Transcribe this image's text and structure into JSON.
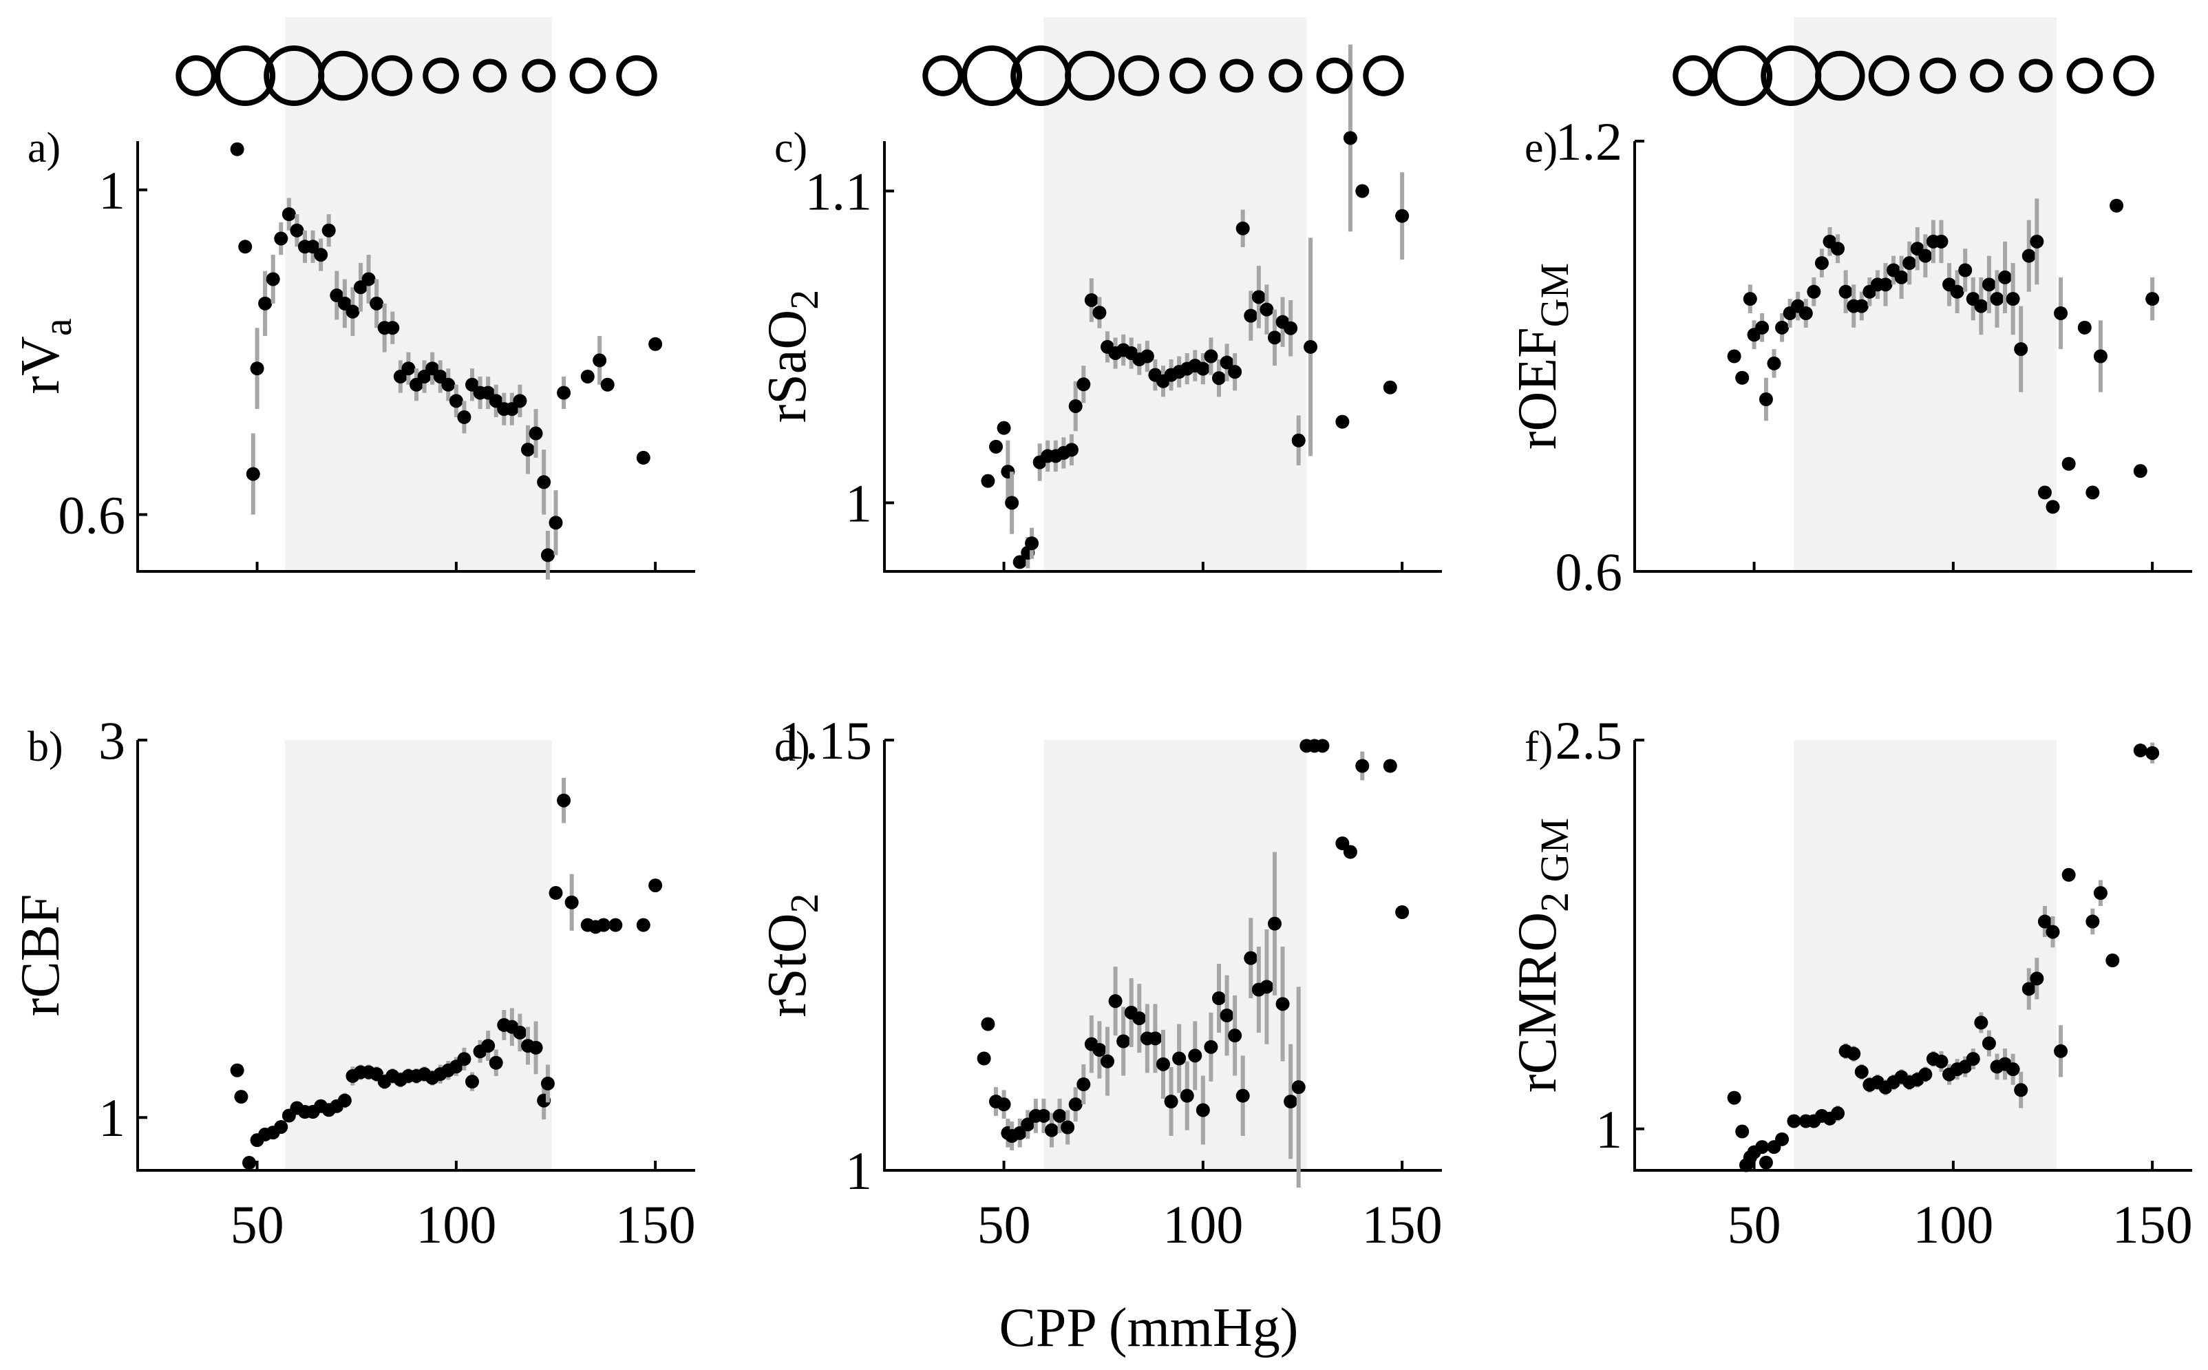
{
  "figure": {
    "xlabel": "CPP (mmHg)"
  },
  "chart_data": [
    {
      "type": "scatter",
      "panel": "a)",
      "ylabel": "rV",
      "ylabel_sub": "a",
      "xlim": [
        20,
        160
      ],
      "ylim": [
        0.53,
        1.06
      ],
      "xticks": [
        50,
        100,
        150
      ],
      "xtick_labels": [
        "50",
        "100",
        "150"
      ],
      "show_xtick_labels": false,
      "yticks": [
        0.6,
        1
      ],
      "ytick_labels": [
        "0.6",
        "1"
      ],
      "shaded_range": [
        57,
        124
      ],
      "x": [
        45,
        47,
        49,
        50,
        52,
        54,
        56,
        58,
        60,
        62,
        64,
        66,
        68,
        70,
        72,
        74,
        76,
        78,
        80,
        82,
        84,
        86,
        88,
        90,
        92,
        94,
        96,
        98,
        100,
        102,
        104,
        106,
        108,
        110,
        112,
        114,
        116,
        118,
        120,
        122,
        123,
        125,
        127,
        133,
        136,
        138,
        147,
        150
      ],
      "y": [
        1.05,
        0.93,
        0.65,
        0.78,
        0.86,
        0.89,
        0.94,
        0.97,
        0.95,
        0.93,
        0.93,
        0.92,
        0.95,
        0.87,
        0.86,
        0.85,
        0.88,
        0.89,
        0.86,
        0.83,
        0.83,
        0.77,
        0.78,
        0.76,
        0.77,
        0.78,
        0.77,
        0.76,
        0.74,
        0.72,
        0.76,
        0.75,
        0.75,
        0.74,
        0.73,
        0.73,
        0.74,
        0.68,
        0.7,
        0.64,
        0.55,
        0.59,
        0.75,
        0.77,
        0.79,
        0.76,
        0.67,
        0.81
      ],
      "err": [
        0,
        0,
        0.05,
        0.05,
        0.04,
        0.03,
        0.02,
        0.02,
        0.02,
        0.02,
        0.02,
        0.02,
        0.02,
        0.03,
        0.03,
        0.03,
        0.03,
        0.03,
        0.03,
        0.03,
        0.02,
        0.02,
        0.02,
        0.02,
        0.02,
        0.02,
        0.02,
        0.02,
        0.02,
        0.02,
        0.02,
        0.02,
        0.02,
        0.02,
        0.02,
        0.02,
        0.02,
        0.03,
        0.03,
        0.04,
        0.03,
        0.04,
        0.02,
        0,
        0.03,
        0,
        0,
        0
      ]
    },
    {
      "type": "scatter",
      "panel": "b)",
      "ylabel": "rCBF",
      "ylabel_sub": "",
      "xlim": [
        20,
        160
      ],
      "ylim": [
        0.72,
        3.0
      ],
      "xticks": [
        50,
        100,
        150
      ],
      "xtick_labels": [
        "50",
        "100",
        "150"
      ],
      "show_xtick_labels": true,
      "yticks": [
        1,
        3
      ],
      "ytick_labels": [
        "1",
        "3"
      ],
      "shaded_range": [
        57,
        124
      ],
      "x": [
        45,
        46,
        48,
        50,
        52,
        54,
        56,
        58,
        60,
        62,
        64,
        66,
        68,
        70,
        72,
        74,
        76,
        78,
        80,
        82,
        84,
        86,
        88,
        90,
        92,
        94,
        96,
        98,
        100,
        102,
        104,
        106,
        108,
        110,
        112,
        114,
        116,
        118,
        120,
        122,
        123,
        125,
        127,
        129,
        133,
        135,
        137,
        140,
        147,
        150
      ],
      "y": [
        1.25,
        1.11,
        0.76,
        0.88,
        0.91,
        0.92,
        0.95,
        1.01,
        1.05,
        1.03,
        1.03,
        1.06,
        1.04,
        1.06,
        1.09,
        1.22,
        1.24,
        1.24,
        1.23,
        1.19,
        1.22,
        1.2,
        1.22,
        1.22,
        1.23,
        1.21,
        1.23,
        1.25,
        1.27,
        1.31,
        1.19,
        1.35,
        1.38,
        1.29,
        1.49,
        1.48,
        1.45,
        1.38,
        1.37,
        1.09,
        1.18,
        2.19,
        2.68,
        2.14,
        2.02,
        2.01,
        2.02,
        2.02,
        2.02,
        2.23
      ],
      "err": [
        0,
        0,
        0,
        0,
        0.03,
        0.03,
        0.03,
        0.03,
        0.03,
        0.03,
        0.03,
        0.03,
        0.03,
        0.03,
        0.04,
        0.05,
        0.04,
        0.04,
        0.04,
        0.04,
        0.04,
        0.04,
        0.04,
        0.04,
        0.04,
        0.04,
        0.05,
        0.05,
        0.05,
        0.06,
        0.05,
        0.06,
        0.08,
        0.07,
        0.08,
        0.1,
        0.1,
        0.1,
        0.14,
        0.1,
        0.1,
        0,
        0.12,
        0.15,
        0,
        0,
        0,
        0,
        0,
        0
      ]
    },
    {
      "type": "scatter",
      "panel": "c)",
      "ylabel": "rSaO",
      "ylabel_sub": "2",
      "xlim": [
        20,
        160
      ],
      "ylim": [
        0.978,
        1.116
      ],
      "xticks": [
        50,
        100,
        150
      ],
      "xtick_labels": [
        "50",
        "100",
        "150"
      ],
      "show_xtick_labels": false,
      "yticks": [
        1,
        1.1
      ],
      "ytick_labels": [
        "1",
        "1.1"
      ],
      "shaded_range": [
        60,
        126
      ],
      "x": [
        46,
        48,
        50,
        51,
        52,
        54,
        56,
        57,
        59,
        61,
        63,
        65,
        67,
        68,
        70,
        72,
        74,
        76,
        78,
        80,
        82,
        84,
        86,
        88,
        90,
        92,
        94,
        96,
        98,
        100,
        102,
        104,
        106,
        108,
        110,
        112,
        114,
        116,
        118,
        120,
        122,
        124,
        127,
        135,
        137,
        140,
        147,
        150
      ],
      "y": [
        1.007,
        1.018,
        1.024,
        1.01,
        1.0,
        0.981,
        0.984,
        0.987,
        1.013,
        1.015,
        1.015,
        1.016,
        1.017,
        1.031,
        1.038,
        1.065,
        1.061,
        1.05,
        1.048,
        1.049,
        1.048,
        1.046,
        1.047,
        1.041,
        1.039,
        1.041,
        1.042,
        1.043,
        1.044,
        1.043,
        1.047,
        1.04,
        1.045,
        1.042,
        1.088,
        1.06,
        1.066,
        1.062,
        1.053,
        1.058,
        1.056,
        1.02,
        1.05,
        1.026,
        1.117,
        1.1,
        1.037,
        1.092
      ],
      "err": [
        0,
        0,
        0,
        0.01,
        0.01,
        0,
        0.005,
        0.005,
        0.006,
        0.005,
        0.005,
        0.005,
        0.005,
        0.008,
        0.006,
        0.007,
        0.005,
        0.005,
        0.005,
        0.005,
        0.005,
        0.005,
        0.005,
        0.005,
        0.005,
        0.005,
        0.005,
        0.005,
        0.005,
        0.005,
        0.006,
        0.006,
        0.006,
        0.006,
        0.006,
        0.008,
        0.01,
        0.008,
        0.009,
        0.008,
        0.009,
        0.008,
        0.035,
        0,
        0.03,
        0,
        0,
        0.014
      ]
    },
    {
      "type": "scatter",
      "panel": "d)",
      "ylabel": "rStO",
      "ylabel_sub": "2",
      "xlim": [
        20,
        160
      ],
      "ylim": [
        1.0,
        1.15
      ],
      "xticks": [
        50,
        100,
        150
      ],
      "xtick_labels": [
        "50",
        "100",
        "150"
      ],
      "show_xtick_labels": true,
      "yticks": [
        1,
        1.15
      ],
      "ytick_labels": [
        "1",
        "1.15"
      ],
      "shaded_range": [
        60,
        126
      ],
      "x": [
        45,
        46,
        48,
        50,
        51,
        52,
        54,
        56,
        58,
        60,
        62,
        64,
        66,
        68,
        70,
        72,
        74,
        76,
        78,
        80,
        82,
        84,
        86,
        88,
        90,
        92,
        94,
        96,
        98,
        100,
        102,
        104,
        106,
        108,
        110,
        112,
        114,
        116,
        118,
        120,
        122,
        124,
        126,
        128,
        130,
        135,
        137,
        140,
        147,
        150
      ],
      "y": [
        1.039,
        1.051,
        1.024,
        1.023,
        1.013,
        1.012,
        1.013,
        1.016,
        1.019,
        1.019,
        1.014,
        1.019,
        1.015,
        1.023,
        1.03,
        1.044,
        1.042,
        1.038,
        1.059,
        1.045,
        1.055,
        1.053,
        1.046,
        1.046,
        1.037,
        1.024,
        1.039,
        1.026,
        1.04,
        1.021,
        1.043,
        1.06,
        1.054,
        1.047,
        1.026,
        1.074,
        1.063,
        1.064,
        1.086,
        1.058,
        1.024,
        1.029,
        1.148,
        1.148,
        1.148,
        1.114,
        1.111,
        1.141,
        1.141,
        1.09
      ],
      "err": [
        0,
        0,
        0.005,
        0.005,
        0.005,
        0.005,
        0.005,
        0.005,
        0.006,
        0.006,
        0.006,
        0.006,
        0.006,
        0.006,
        0.007,
        0.01,
        0.01,
        0.012,
        0.012,
        0.012,
        0.012,
        0.012,
        0.012,
        0.012,
        0.012,
        0.012,
        0.012,
        0.012,
        0.012,
        0.012,
        0.012,
        0.012,
        0.014,
        0.014,
        0.014,
        0.014,
        0.015,
        0.02,
        0.025,
        0.02,
        0.02,
        0.035,
        0,
        0,
        0,
        0,
        0,
        0.005,
        0,
        0
      ]
    },
    {
      "type": "scatter",
      "panel": "e)",
      "ylabel": "rOEF",
      "ylabel_sub": "GM",
      "xlim": [
        20,
        160
      ],
      "ylim": [
        0.6,
        1.2
      ],
      "xticks": [
        50,
        100,
        150
      ],
      "xtick_labels": [
        "50",
        "100",
        "150"
      ],
      "show_xtick_labels": false,
      "yticks": [
        0.6,
        1.2
      ],
      "ytick_labels": [
        "0.6",
        "1.2"
      ],
      "shaded_range": [
        60,
        126
      ],
      "x": [
        45,
        47,
        49,
        50,
        52,
        53,
        55,
        57,
        59,
        61,
        63,
        65,
        67,
        69,
        71,
        73,
        75,
        77,
        79,
        81,
        83,
        85,
        87,
        89,
        91,
        93,
        95,
        97,
        99,
        101,
        103,
        105,
        107,
        109,
        111,
        113,
        115,
        117,
        119,
        121,
        123,
        125,
        127,
        129,
        133,
        135,
        137,
        141,
        147,
        150
      ],
      "y": [
        0.9,
        0.87,
        0.98,
        0.93,
        0.94,
        0.84,
        0.89,
        0.94,
        0.96,
        0.97,
        0.96,
        0.99,
        1.03,
        1.06,
        1.05,
        0.99,
        0.97,
        0.97,
        0.99,
        1.0,
        1.0,
        1.02,
        1.01,
        1.03,
        1.05,
        1.04,
        1.06,
        1.06,
        1.0,
        0.99,
        1.02,
        0.98,
        0.97,
        1.0,
        0.98,
        1.01,
        0.98,
        0.91,
        1.04,
        1.06,
        0.71,
        0.69,
        0.96,
        0.75,
        0.94,
        0.71,
        0.9,
        1.11,
        0.74,
        0.98
      ],
      "err": [
        0,
        0,
        0.02,
        0.02,
        0.02,
        0.03,
        0.02,
        0.02,
        0.02,
        0.02,
        0.02,
        0.02,
        0.02,
        0.02,
        0.02,
        0.03,
        0.03,
        0.02,
        0.02,
        0.02,
        0.03,
        0.02,
        0.03,
        0.03,
        0.03,
        0.03,
        0.03,
        0.03,
        0.03,
        0.03,
        0.03,
        0.03,
        0.04,
        0.04,
        0.04,
        0.05,
        0.05,
        0.06,
        0.05,
        0.06,
        0,
        0,
        0.05,
        0,
        0,
        0,
        0.05,
        0,
        0,
        0.03
      ]
    },
    {
      "type": "scatter",
      "panel": "f)",
      "ylabel": "rCMRO",
      "ylabel_sub": "2 GM",
      "xlim": [
        20,
        160
      ],
      "ylim": [
        0.84,
        2.5
      ],
      "xticks": [
        50,
        100,
        150
      ],
      "xtick_labels": [
        "50",
        "100",
        "150"
      ],
      "show_xtick_labels": true,
      "yticks": [
        1,
        2.5
      ],
      "ytick_labels": [
        "1",
        "2.5"
      ],
      "shaded_range": [
        60,
        126
      ],
      "x": [
        45,
        47,
        48,
        49,
        50,
        52,
        53,
        55,
        57,
        60,
        63,
        65,
        67,
        69,
        71,
        73,
        75,
        77,
        79,
        81,
        83,
        85,
        87,
        89,
        91,
        93,
        95,
        97,
        99,
        101,
        103,
        105,
        107,
        109,
        111,
        113,
        115,
        117,
        119,
        121,
        123,
        125,
        127,
        129,
        135,
        137,
        140,
        147,
        150
      ],
      "y": [
        1.12,
        0.99,
        0.86,
        0.89,
        0.91,
        0.93,
        0.87,
        0.93,
        0.96,
        1.03,
        1.03,
        1.03,
        1.05,
        1.04,
        1.06,
        1.3,
        1.29,
        1.22,
        1.17,
        1.18,
        1.16,
        1.18,
        1.2,
        1.18,
        1.19,
        1.21,
        1.27,
        1.26,
        1.21,
        1.23,
        1.24,
        1.27,
        1.41,
        1.33,
        1.24,
        1.25,
        1.23,
        1.15,
        1.54,
        1.58,
        1.8,
        1.76,
        1.3,
        1.98,
        1.8,
        1.91,
        1.65,
        2.46,
        2.45
      ],
      "err": [
        0,
        0,
        0,
        0,
        0,
        0,
        0,
        0.01,
        0.02,
        0.02,
        0.02,
        0.02,
        0.02,
        0.02,
        0.03,
        0.03,
        0.03,
        0.03,
        0.03,
        0.03,
        0.03,
        0.03,
        0.03,
        0.03,
        0.03,
        0.03,
        0.03,
        0.04,
        0.04,
        0.04,
        0.04,
        0.04,
        0.04,
        0.05,
        0.05,
        0.06,
        0.06,
        0.07,
        0.08,
        0.08,
        0.06,
        0.06,
        0.1,
        0,
        0.05,
        0.05,
        0,
        0,
        0.04
      ]
    }
  ],
  "bin_markers": {
    "relative_sizes": [
      0.45,
      1.0,
      1.0,
      0.7,
      0.45,
      0.32,
      0.25,
      0.25,
      0.32,
      0.45
    ]
  }
}
